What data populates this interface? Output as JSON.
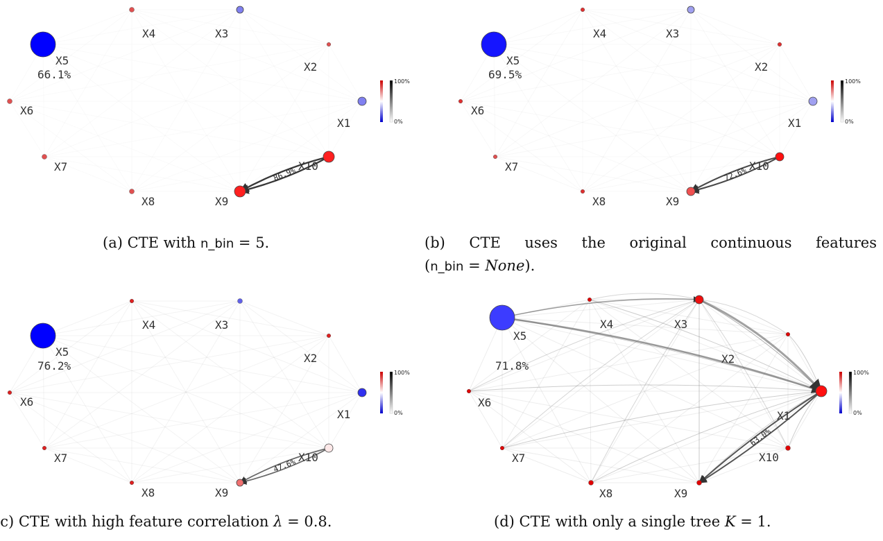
{
  "panels": [
    {
      "id": "a",
      "caption": {
        "prefix": "(a) CTE with ",
        "code": "n_bin",
        "suffix": " = 5."
      },
      "big_node": {
        "label": "X5",
        "pct": "66.1%"
      },
      "nodes": [
        {
          "label": "X1",
          "color": "#8080f0",
          "importance": 0.05
        },
        {
          "label": "X2",
          "color": "#e05050",
          "importance": 0.01
        },
        {
          "label": "X3",
          "color": "#8080f0",
          "importance": 0.03
        },
        {
          "label": "X4",
          "color": "#e05050",
          "importance": 0.02
        },
        {
          "label": "X5",
          "color": "#0000ff",
          "importance": 0.661
        },
        {
          "label": "X6",
          "color": "#e05050",
          "importance": 0.02
        },
        {
          "label": "X7",
          "color": "#e05050",
          "importance": 0.02
        },
        {
          "label": "X8",
          "color": "#e05050",
          "importance": 0.02
        },
        {
          "label": "X9",
          "color": "#ff2020",
          "importance": 0.08
        },
        {
          "label": "X10",
          "color": "#ff2020",
          "importance": 0.08
        }
      ],
      "strong_edge": {
        "from": "X10",
        "to": "X9",
        "label": "86.9%",
        "strength": 0.869
      }
    },
    {
      "id": "b",
      "caption": {
        "prefix": "(b) CTE uses the original continuous features",
        "line2_prefix": "(",
        "code": "n_bin",
        "line2_mid": " = ",
        "italic": "None",
        "line2_suffix": ")."
      },
      "big_node": {
        "label": "X5",
        "pct": "69.5%"
      },
      "nodes": [
        {
          "label": "X1",
          "color": "#a0a0f0",
          "importance": 0.05
        },
        {
          "label": "X2",
          "color": "#e03030",
          "importance": 0.01
        },
        {
          "label": "X3",
          "color": "#a0a0f0",
          "importance": 0.04
        },
        {
          "label": "X4",
          "color": "#e03030",
          "importance": 0.01
        },
        {
          "label": "X5",
          "color": "#1515ff",
          "importance": 0.695
        },
        {
          "label": "X6",
          "color": "#e03030",
          "importance": 0.01
        },
        {
          "label": "X7",
          "color": "#e05050",
          "importance": 0.01
        },
        {
          "label": "X8",
          "color": "#e03030",
          "importance": 0.01
        },
        {
          "label": "X9",
          "color": "#f05050",
          "importance": 0.06
        },
        {
          "label": "X10",
          "color": "#ff1010",
          "importance": 0.05
        }
      ],
      "strong_edge": {
        "from": "X10",
        "to": "X9",
        "label": "72.6%",
        "strength": 0.726
      }
    },
    {
      "id": "c",
      "caption": {
        "prefix": "(c) CTE with high feature correlation ",
        "italic": "λ",
        "suffix": " = 0.8."
      },
      "big_node": {
        "label": "X5",
        "pct": "76.2%"
      },
      "nodes": [
        {
          "label": "X1",
          "color": "#3030f0",
          "importance": 0.05
        },
        {
          "label": "X2",
          "color": "#e02020",
          "importance": 0.01
        },
        {
          "label": "X3",
          "color": "#6060e8",
          "importance": 0.02
        },
        {
          "label": "X4",
          "color": "#e02020",
          "importance": 0.01
        },
        {
          "label": "X5",
          "color": "#0000ff",
          "importance": 0.762
        },
        {
          "label": "X6",
          "color": "#e02020",
          "importance": 0.01
        },
        {
          "label": "X7",
          "color": "#e02020",
          "importance": 0.01
        },
        {
          "label": "X8",
          "color": "#e02020",
          "importance": 0.01
        },
        {
          "label": "X9",
          "color": "#f07070",
          "importance": 0.03
        },
        {
          "label": "X10",
          "color": "#fde8e8",
          "importance": 0.05
        }
      ],
      "strong_edge": {
        "from": "X10",
        "to": "X9",
        "label": "47.6%",
        "strength": 0.476
      }
    },
    {
      "id": "d",
      "caption": {
        "prefix": "(d) CTE with only a single tree ",
        "italic": "K",
        "suffix": " = 1."
      },
      "big_node": {
        "label": "X5",
        "pct": "71.8%"
      },
      "nodes": [
        {
          "label": "X1",
          "color": "#ff1010",
          "importance": 0.09
        },
        {
          "label": "X2",
          "color": "#e00000",
          "importance": 0.01
        },
        {
          "label": "X3",
          "color": "#ee1010",
          "importance": 0.07
        },
        {
          "label": "X4",
          "color": "#e00000",
          "importance": 0.01
        },
        {
          "label": "X5",
          "color": "#3c3cff",
          "importance": 0.718
        },
        {
          "label": "X6",
          "color": "#e00000",
          "importance": 0.01
        },
        {
          "label": "X7",
          "color": "#e00000",
          "importance": 0.01
        },
        {
          "label": "X8",
          "color": "#e00000",
          "importance": 0.02
        },
        {
          "label": "X9",
          "color": "#e00000",
          "importance": 0.02
        },
        {
          "label": "X10",
          "color": "#e00000",
          "importance": 0.02
        }
      ],
      "strong_edge": {
        "from": "X1",
        "to": "X9",
        "label": "63.0%",
        "strength": 0.63
      }
    }
  ],
  "colorbar": {
    "max_label": "100%",
    "min_label": "0%"
  }
}
